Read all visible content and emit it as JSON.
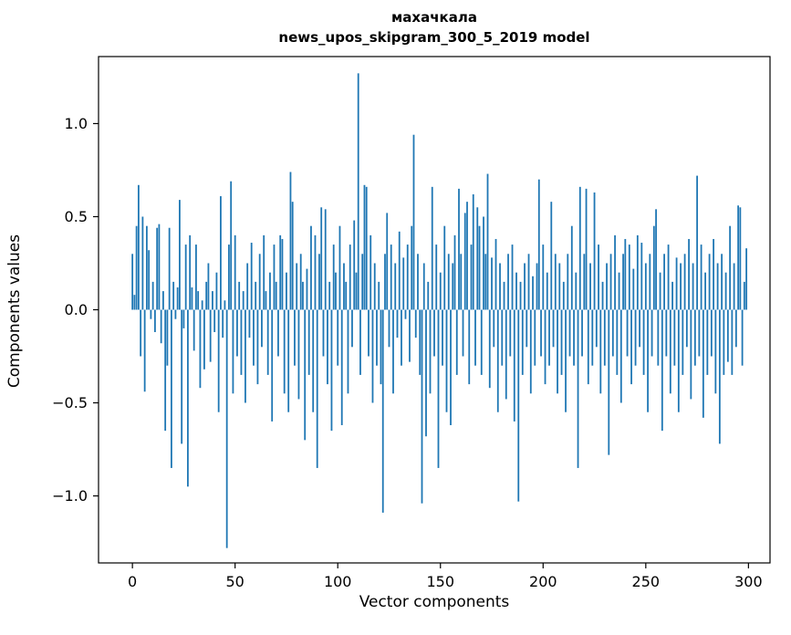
{
  "header": {
    "title_line1": "махачкала",
    "title_line2": "news_upos_skipgram_300_5_2019 model"
  },
  "chart_data": {
    "type": "bar",
    "title": "махачкала / news_upos_skipgram_300_5_2019 model",
    "xlabel": "Vector components",
    "ylabel": "Components values",
    "xlim": [
      -16.5,
      310.5
    ],
    "ylim": [
      -1.36,
      1.36
    ],
    "x_ticks": [
      0,
      50,
      100,
      150,
      200,
      250,
      300
    ],
    "y_ticks": [
      -1.0,
      -0.5,
      0.0,
      0.5,
      1.0
    ],
    "bar_color": "#1f77b4",
    "grid": false,
    "legend": "none",
    "values": [
      0.3,
      0.08,
      0.45,
      0.67,
      -0.25,
      0.5,
      -0.44,
      0.45,
      0.32,
      -0.05,
      0.15,
      -0.12,
      0.44,
      0.46,
      -0.18,
      0.1,
      -0.65,
      -0.3,
      0.44,
      -0.85,
      0.15,
      -0.05,
      0.12,
      0.59,
      -0.72,
      -0.1,
      0.35,
      -0.95,
      0.4,
      0.12,
      -0.22,
      0.35,
      0.1,
      -0.42,
      0.05,
      -0.32,
      0.15,
      0.25,
      -0.28,
      0.1,
      -0.12,
      0.2,
      -0.55,
      0.61,
      -0.15,
      0.05,
      -1.28,
      0.35,
      0.69,
      -0.45,
      0.4,
      -0.25,
      0.15,
      -0.35,
      0.1,
      -0.5,
      0.25,
      -0.15,
      0.36,
      -0.3,
      0.15,
      -0.4,
      0.3,
      -0.2,
      0.4,
      0.1,
      -0.35,
      0.2,
      -0.6,
      0.35,
      0.15,
      -0.25,
      0.4,
      0.38,
      -0.45,
      0.2,
      -0.55,
      0.74,
      0.58,
      -0.3,
      0.25,
      -0.48,
      0.3,
      0.15,
      -0.7,
      0.22,
      -0.35,
      0.45,
      -0.55,
      0.4,
      -0.85,
      0.3,
      0.55,
      -0.25,
      0.54,
      -0.4,
      0.15,
      -0.65,
      0.35,
      0.2,
      -0.3,
      0.45,
      -0.62,
      0.25,
      0.15,
      -0.45,
      0.35,
      -0.2,
      0.48,
      0.2,
      1.27,
      -0.35,
      0.3,
      0.67,
      0.66,
      -0.25,
      0.4,
      -0.5,
      0.25,
      -0.3,
      0.15,
      -0.4,
      -1.09,
      0.3,
      0.52,
      -0.2,
      0.35,
      -0.45,
      0.25,
      -0.15,
      0.42,
      -0.3,
      0.28,
      -0.05,
      0.35,
      -0.28,
      0.45,
      0.94,
      -0.15,
      0.3,
      -0.35,
      -1.04,
      0.25,
      -0.68,
      0.15,
      -0.45,
      0.66,
      -0.25,
      0.35,
      -0.85,
      0.2,
      -0.3,
      0.45,
      -0.55,
      0.3,
      -0.62,
      0.25,
      0.4,
      -0.35,
      0.65,
      0.3,
      -0.25,
      0.52,
      0.58,
      -0.4,
      0.35,
      0.62,
      -0.3,
      0.55,
      0.45,
      -0.35,
      0.5,
      0.3,
      0.73,
      -0.42,
      0.28,
      -0.2,
      0.38,
      -0.55,
      0.25,
      -0.3,
      0.15,
      -0.48,
      0.3,
      -0.25,
      0.35,
      -0.6,
      0.2,
      -1.03,
      0.15,
      -0.35,
      0.25,
      -0.2,
      0.3,
      -0.45,
      0.18,
      -0.3,
      0.25,
      0.7,
      -0.25,
      0.35,
      -0.4,
      0.2,
      -0.3,
      0.58,
      -0.2,
      0.3,
      -0.45,
      0.25,
      -0.35,
      0.15,
      -0.55,
      0.3,
      -0.25,
      0.45,
      -0.3,
      0.2,
      -0.85,
      0.66,
      -0.25,
      0.3,
      0.65,
      -0.4,
      0.25,
      -0.3,
      0.63,
      -0.2,
      0.35,
      -0.45,
      0.15,
      -0.3,
      0.25,
      -0.78,
      0.3,
      -0.25,
      0.4,
      -0.35,
      0.2,
      -0.5,
      0.3,
      0.38,
      -0.25,
      0.35,
      -0.4,
      0.22,
      -0.3,
      0.4,
      -0.2,
      0.36,
      -0.35,
      0.25,
      -0.55,
      0.3,
      -0.25,
      0.45,
      0.54,
      -0.3,
      0.2,
      -0.65,
      0.3,
      -0.25,
      0.35,
      -0.45,
      0.15,
      -0.3,
      0.28,
      -0.55,
      0.25,
      -0.35,
      0.3,
      -0.2,
      0.38,
      -0.48,
      0.25,
      -0.3,
      0.72,
      -0.25,
      0.35,
      -0.58,
      0.2,
      -0.35,
      0.3,
      -0.25,
      0.38,
      -0.45,
      0.25,
      -0.72,
      0.3,
      -0.35,
      0.2,
      -0.28,
      0.45,
      -0.35,
      0.25,
      -0.2,
      0.56,
      0.55,
      -0.3,
      0.15,
      0.33
    ]
  }
}
